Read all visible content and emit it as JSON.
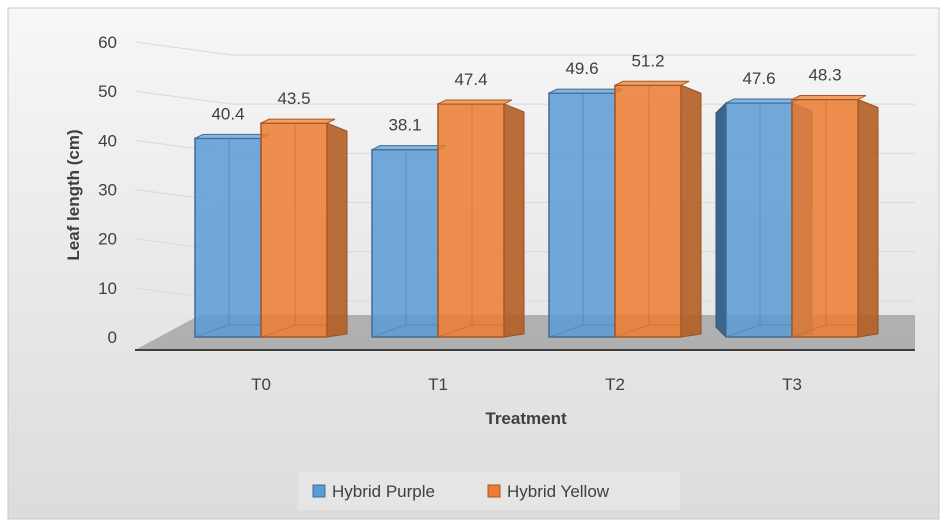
{
  "chart_data": {
    "type": "bar",
    "title": "",
    "xlabel": "Treatment",
    "ylabel": "Leaf length (cm)",
    "categories": [
      "T0",
      "T1",
      "T2",
      "T3"
    ],
    "ylim": [
      0,
      60
    ],
    "yticks": [
      "0",
      "10",
      "20",
      "30",
      "40",
      "50",
      "60"
    ],
    "grid": true,
    "legend_position": "bottom",
    "series": [
      {
        "name": "Hybrid Purple",
        "values": [
          40.4,
          38.1,
          49.6,
          47.6
        ],
        "labels": [
          "40.4",
          "38.1",
          "49.6",
          "47.6"
        ],
        "color": "#5b9bd5"
      },
      {
        "name": "Hybrid Yellow",
        "values": [
          43.5,
          47.4,
          51.2,
          48.3
        ],
        "labels": [
          "43.5",
          "47.4",
          "51.2",
          "48.3"
        ],
        "color": "#ed7d31"
      }
    ]
  }
}
